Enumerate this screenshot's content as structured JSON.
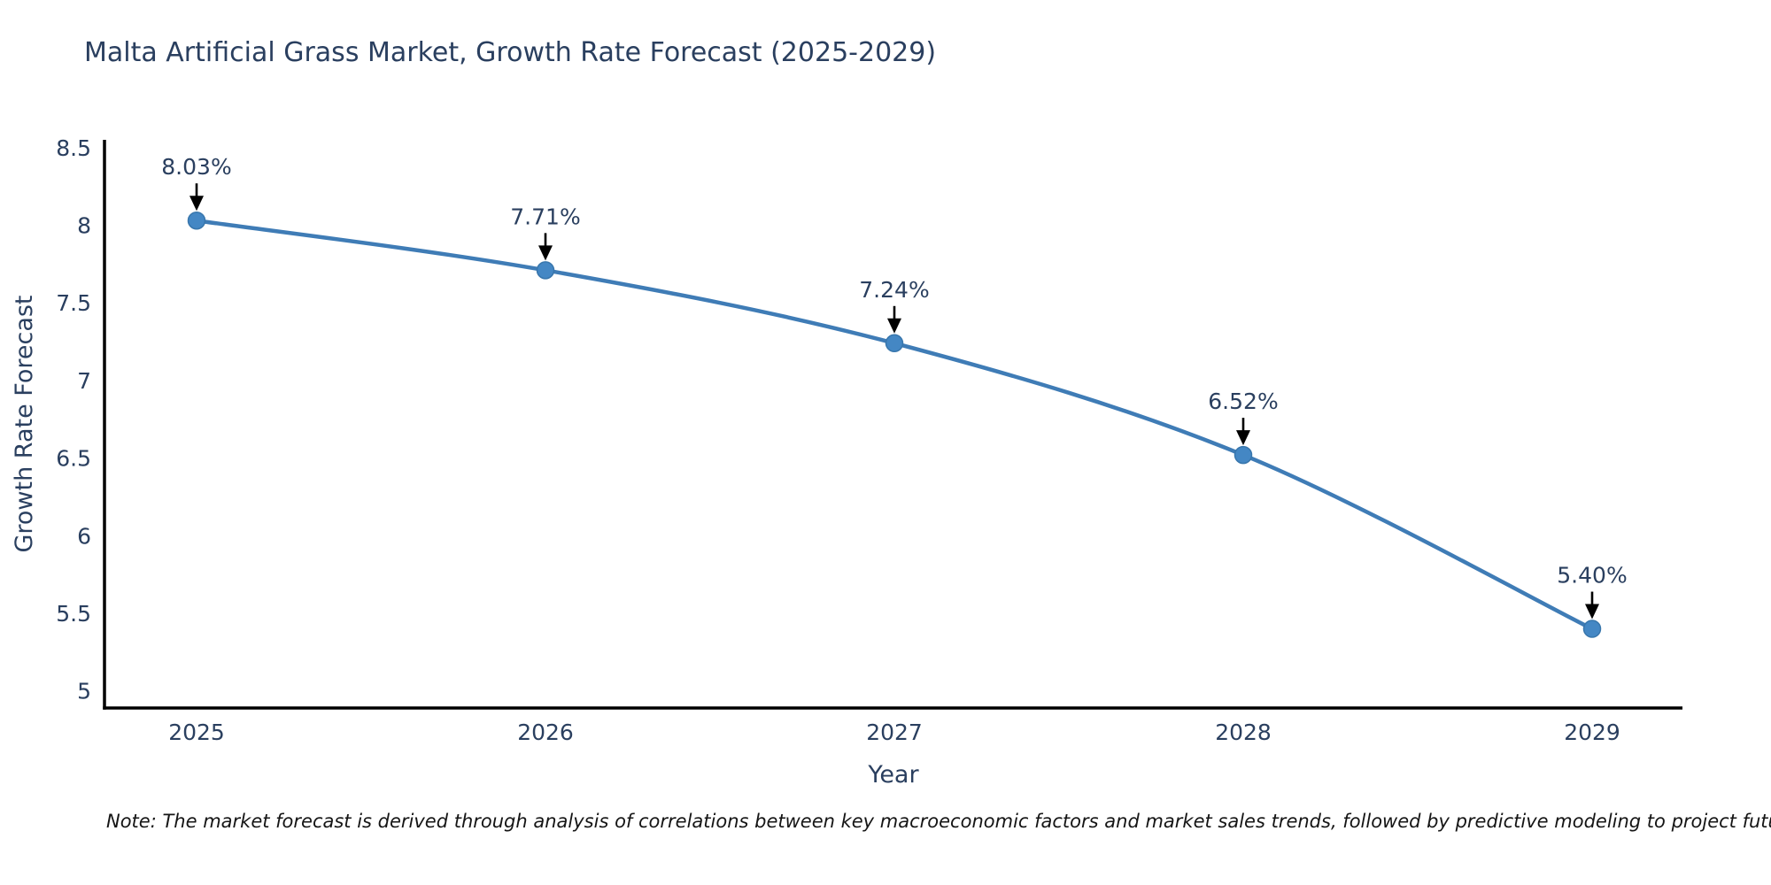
{
  "chart_data": {
    "type": "line",
    "title": "Malta Artificial Grass Market, Growth Rate Forecast (2025-2029)",
    "xlabel": "Year",
    "ylabel": "Growth Rate Forecast",
    "categories": [
      "2025",
      "2026",
      "2027",
      "2028",
      "2029"
    ],
    "series": [
      {
        "name": "Growth Rate Forecast",
        "values": [
          8.03,
          7.71,
          7.24,
          6.52,
          5.4
        ]
      }
    ],
    "point_labels": [
      "8.03%",
      "7.71%",
      "7.24%",
      "6.52%",
      "5.40%"
    ],
    "yticks": [
      8.5,
      8,
      7.5,
      7,
      6.5,
      6,
      5.5,
      5
    ],
    "ytick_labels": [
      "8.5",
      "8",
      "7.5",
      "7",
      "6.5",
      "6",
      "5.5",
      "5"
    ],
    "ylim": [
      4.89,
      8.55
    ],
    "grid": false,
    "legend_position": "none",
    "line_shape": "spline",
    "colors": {
      "line": "#3f7cb6",
      "marker_fill": "#4487c4",
      "marker_edge": "#3876ac",
      "axis": "#000000",
      "text": "#2a3f5f",
      "annotation_arrow": "#000000"
    }
  },
  "note": "Note: The market forecast is derived through analysis of correlations between key macroeconomic factors and market sales trends, followed by predictive modeling to project future sales."
}
